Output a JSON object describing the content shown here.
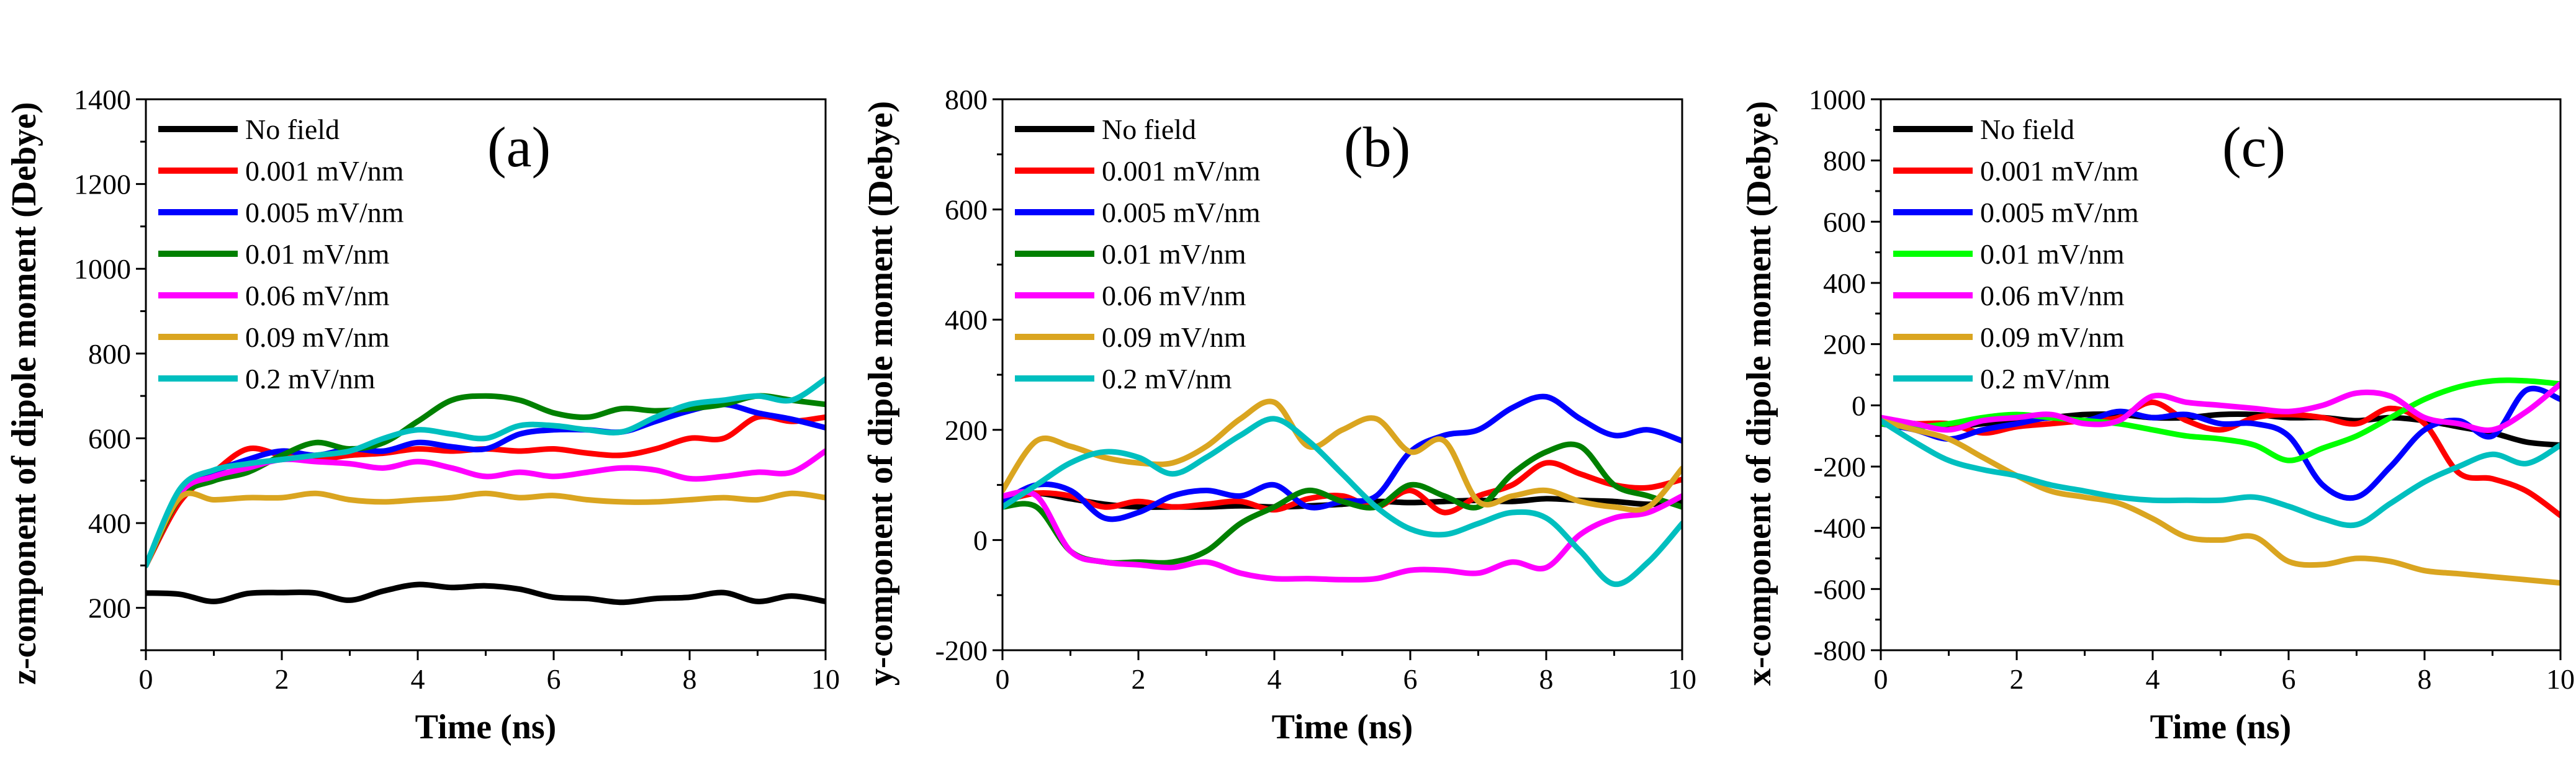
{
  "chart_data": [
    {
      "type": "line",
      "panel_label": "(a)",
      "xlabel": "Time (ns)",
      "ylabel": "z-component of dipole moment (Debye)",
      "xlim": [
        0,
        10
      ],
      "ylim": [
        100,
        1400
      ],
      "xticks": [
        0,
        2,
        4,
        6,
        8,
        10
      ],
      "yticks": [
        200,
        400,
        600,
        800,
        1000,
        1200,
        1400
      ],
      "legend_position": "top-left",
      "series": [
        {
          "name": "No field",
          "color": "#000000",
          "x": [
            0,
            0.5,
            1,
            1.5,
            2,
            2.5,
            3,
            3.5,
            4,
            4.5,
            5,
            5.5,
            6,
            6.5,
            7,
            7.5,
            8,
            8.5,
            9,
            9.5,
            10
          ],
          "y": [
            235,
            232,
            215,
            234,
            236,
            235,
            218,
            240,
            255,
            248,
            252,
            244,
            225,
            222,
            213,
            222,
            225,
            236,
            215,
            228,
            215
          ]
        },
        {
          "name": "0.001 mV/nm",
          "color": "#ff0000",
          "x": [
            0,
            0.5,
            1,
            1.5,
            2,
            2.5,
            3,
            3.5,
            4,
            4.5,
            5,
            5.5,
            6,
            6.5,
            7,
            7.5,
            8,
            8.5,
            9,
            9.5,
            10
          ],
          "y": [
            300,
            450,
            520,
            575,
            560,
            550,
            560,
            565,
            575,
            570,
            575,
            570,
            575,
            565,
            560,
            575,
            600,
            600,
            650,
            640,
            650
          ]
        },
        {
          "name": "0.005 mV/nm",
          "color": "#0000ff",
          "x": [
            0,
            0.5,
            1,
            1.5,
            2,
            2.5,
            3,
            3.5,
            4,
            4.5,
            5,
            5.5,
            6,
            6.5,
            7,
            7.5,
            8,
            8.5,
            9,
            9.5,
            10
          ],
          "y": [
            300,
            470,
            520,
            550,
            570,
            560,
            575,
            570,
            590,
            580,
            575,
            610,
            620,
            620,
            615,
            640,
            665,
            680,
            660,
            645,
            625
          ]
        },
        {
          "name": "0.01 mV/nm",
          "color": "#008000",
          "x": [
            0,
            0.5,
            1,
            1.5,
            2,
            2.5,
            3,
            3.5,
            4,
            4.5,
            5,
            5.5,
            6,
            6.5,
            7,
            7.5,
            8,
            8.5,
            9,
            9.5,
            10
          ],
          "y": [
            300,
            460,
            500,
            520,
            560,
            590,
            575,
            590,
            640,
            690,
            700,
            690,
            660,
            650,
            670,
            665,
            670,
            680,
            700,
            690,
            680
          ]
        },
        {
          "name": "0.06 mV/nm",
          "color": "#ff00ff",
          "x": [
            0,
            0.5,
            1,
            1.5,
            2,
            2.5,
            3,
            3.5,
            4,
            4.5,
            5,
            5.5,
            6,
            6.5,
            7,
            7.5,
            8,
            8.5,
            9,
            9.5,
            10
          ],
          "y": [
            300,
            470,
            510,
            530,
            550,
            545,
            540,
            530,
            545,
            530,
            510,
            520,
            510,
            520,
            530,
            525,
            505,
            510,
            520,
            520,
            570
          ]
        },
        {
          "name": "0.09 mV/nm",
          "color": "#daa520",
          "x": [
            0,
            0.5,
            1,
            1.5,
            2,
            2.5,
            3,
            3.5,
            4,
            4.5,
            5,
            5.5,
            6,
            6.5,
            7,
            7.5,
            8,
            8.5,
            9,
            9.5,
            10
          ],
          "y": [
            300,
            460,
            455,
            460,
            460,
            470,
            455,
            450,
            455,
            460,
            470,
            460,
            465,
            455,
            450,
            450,
            455,
            460,
            455,
            470,
            460
          ]
        },
        {
          "name": "0.2 mV/nm",
          "color": "#00bfbf",
          "x": [
            0,
            0.5,
            1,
            1.5,
            2,
            2.5,
            3,
            3.5,
            4,
            4.5,
            5,
            5.5,
            6,
            6.5,
            7,
            7.5,
            8,
            8.5,
            9,
            9.5,
            10
          ],
          "y": [
            300,
            480,
            525,
            540,
            550,
            560,
            570,
            600,
            620,
            610,
            600,
            630,
            630,
            620,
            615,
            650,
            680,
            690,
            700,
            690,
            740
          ]
        }
      ]
    },
    {
      "type": "line",
      "panel_label": "(b)",
      "xlabel": "Time (ns)",
      "ylabel": "y-component of dipole moment (Debye)",
      "xlim": [
        0,
        10
      ],
      "ylim": [
        -200,
        800
      ],
      "xticks": [
        0,
        2,
        4,
        6,
        8,
        10
      ],
      "yticks": [
        -200,
        0,
        200,
        400,
        600,
        800
      ],
      "legend_position": "top-left",
      "series": [
        {
          "name": "No field",
          "color": "#000000",
          "x": [
            0,
            0.5,
            1,
            1.5,
            2,
            2.5,
            3,
            3.5,
            4,
            4.5,
            5,
            5.5,
            6,
            6.5,
            7,
            7.5,
            8,
            8.5,
            9,
            9.5,
            10
          ],
          "y": [
            80,
            85,
            75,
            65,
            60,
            60,
            60,
            62,
            60,
            62,
            65,
            70,
            68,
            70,
            72,
            70,
            75,
            72,
            70,
            65,
            70
          ]
        },
        {
          "name": "0.001 mV/nm",
          "color": "#ff0000",
          "x": [
            0,
            0.5,
            1,
            1.5,
            2,
            2.5,
            3,
            3.5,
            4,
            4.5,
            5,
            5.5,
            6,
            6.5,
            7,
            7.5,
            8,
            8.5,
            9,
            9.5,
            10
          ],
          "y": [
            70,
            85,
            80,
            60,
            70,
            60,
            65,
            70,
            55,
            75,
            80,
            60,
            90,
            50,
            80,
            100,
            140,
            120,
            100,
            95,
            110
          ]
        },
        {
          "name": "0.005 mV/nm",
          "color": "#0000ff",
          "x": [
            0,
            0.5,
            1,
            1.5,
            2,
            2.5,
            3,
            3.5,
            4,
            4.5,
            5,
            5.5,
            6,
            6.5,
            7,
            7.5,
            8,
            8.5,
            9,
            9.5,
            10
          ],
          "y": [
            70,
            100,
            90,
            40,
            50,
            80,
            90,
            80,
            100,
            60,
            70,
            80,
            160,
            190,
            200,
            240,
            260,
            220,
            190,
            200,
            180
          ]
        },
        {
          "name": "0.01 mV/nm",
          "color": "#008000",
          "x": [
            0,
            0.5,
            1,
            1.5,
            2,
            2.5,
            3,
            3.5,
            4,
            4.5,
            5,
            5.5,
            6,
            6.5,
            7,
            7.5,
            8,
            8.5,
            9,
            9.5,
            10
          ],
          "y": [
            60,
            60,
            -20,
            -40,
            -40,
            -40,
            -20,
            30,
            60,
            90,
            70,
            60,
            100,
            80,
            60,
            120,
            160,
            170,
            100,
            80,
            60
          ]
        },
        {
          "name": "0.06 mV/nm",
          "color": "#ff00ff",
          "x": [
            0,
            0.5,
            1,
            1.5,
            2,
            2.5,
            3,
            3.5,
            4,
            4.5,
            5,
            5.5,
            6,
            6.5,
            7,
            7.5,
            8,
            8.5,
            9,
            9.5,
            10
          ],
          "y": [
            80,
            80,
            -20,
            -40,
            -45,
            -50,
            -40,
            -60,
            -70,
            -70,
            -72,
            -70,
            -55,
            -55,
            -60,
            -40,
            -50,
            10,
            40,
            50,
            80
          ]
        },
        {
          "name": "0.09 mV/nm",
          "color": "#daa520",
          "x": [
            0,
            0.5,
            1,
            1.5,
            2,
            2.5,
            3,
            3.5,
            4,
            4.5,
            5,
            5.5,
            6,
            6.5,
            7,
            7.5,
            8,
            8.5,
            9,
            9.5,
            10
          ],
          "y": [
            90,
            180,
            170,
            150,
            140,
            140,
            170,
            220,
            250,
            170,
            200,
            220,
            160,
            180,
            70,
            80,
            90,
            70,
            60,
            60,
            130
          ]
        },
        {
          "name": "0.2 mV/nm",
          "color": "#00bfbf",
          "x": [
            0,
            0.5,
            1,
            1.5,
            2,
            2.5,
            3,
            3.5,
            4,
            4.5,
            5,
            5.5,
            6,
            6.5,
            7,
            7.5,
            8,
            8.5,
            9,
            9.5,
            10
          ],
          "y": [
            60,
            100,
            140,
            160,
            150,
            120,
            150,
            190,
            220,
            180,
            120,
            60,
            20,
            10,
            30,
            50,
            40,
            -20,
            -80,
            -40,
            30
          ]
        }
      ]
    },
    {
      "type": "line",
      "panel_label": "(c)",
      "xlabel": "Time (ns)",
      "ylabel": "x-component of dipole moment (Debye)",
      "xlim": [
        0,
        10
      ],
      "ylim": [
        -800,
        1000
      ],
      "xticks": [
        0,
        2,
        4,
        6,
        8,
        10
      ],
      "yticks": [
        -800,
        -600,
        -400,
        -200,
        0,
        200,
        400,
        600,
        800,
        1000
      ],
      "legend_position": "top-left",
      "series": [
        {
          "name": "No field",
          "color": "#000000",
          "x": [
            0,
            0.5,
            1,
            1.5,
            2,
            2.5,
            3,
            3.5,
            4,
            4.5,
            5,
            5.5,
            6,
            6.5,
            7,
            7.5,
            8,
            8.5,
            9,
            9.5,
            10
          ],
          "y": [
            -50,
            -60,
            -70,
            -60,
            -50,
            -40,
            -30,
            -30,
            -40,
            -40,
            -30,
            -30,
            -40,
            -40,
            -50,
            -40,
            -50,
            -70,
            -90,
            -120,
            -130
          ]
        },
        {
          "name": "0.001 mV/nm",
          "color": "#ff0000",
          "x": [
            0,
            0.5,
            1,
            1.5,
            2,
            2.5,
            3,
            3.5,
            4,
            4.5,
            5,
            5.5,
            6,
            6.5,
            7,
            7.5,
            8,
            8.5,
            9,
            9.5,
            10
          ],
          "y": [
            -50,
            -60,
            -60,
            -90,
            -70,
            -60,
            -50,
            -40,
            10,
            -50,
            -80,
            -40,
            -30,
            -40,
            -60,
            -10,
            -60,
            -220,
            -240,
            -280,
            -360
          ]
        },
        {
          "name": "0.005 mV/nm",
          "color": "#0000ff",
          "x": [
            0,
            0.5,
            1,
            1.5,
            2,
            2.5,
            3,
            3.5,
            4,
            4.5,
            5,
            5.5,
            6,
            6.5,
            7,
            7.5,
            8,
            8.5,
            9,
            9.5,
            10
          ],
          "y": [
            -60,
            -80,
            -110,
            -80,
            -60,
            -40,
            -50,
            -20,
            -40,
            -30,
            -60,
            -60,
            -100,
            -260,
            -300,
            -200,
            -80,
            -50,
            -100,
            50,
            20
          ]
        },
        {
          "name": "0.01 mV/nm",
          "color": "#00ff00",
          "x": [
            0,
            0.5,
            1,
            1.5,
            2,
            2.5,
            3,
            3.5,
            4,
            4.5,
            5,
            5.5,
            6,
            6.5,
            7,
            7.5,
            8,
            8.5,
            9,
            9.5,
            10
          ],
          "y": [
            -60,
            -70,
            -60,
            -40,
            -30,
            -40,
            -50,
            -60,
            -80,
            -100,
            -110,
            -130,
            -180,
            -140,
            -100,
            -40,
            20,
            60,
            80,
            80,
            70
          ]
        },
        {
          "name": "0.06 mV/nm",
          "color": "#ff00ff",
          "x": [
            0,
            0.5,
            1,
            1.5,
            2,
            2.5,
            3,
            3.5,
            4,
            4.5,
            5,
            5.5,
            6,
            6.5,
            7,
            7.5,
            8,
            8.5,
            9,
            9.5,
            10
          ],
          "y": [
            -40,
            -60,
            -80,
            -50,
            -40,
            -30,
            -60,
            -50,
            30,
            10,
            0,
            -10,
            -20,
            0,
            40,
            30,
            -40,
            -60,
            -80,
            -20,
            70
          ]
        },
        {
          "name": "0.09 mV/nm",
          "color": "#daa520",
          "x": [
            0,
            0.5,
            1,
            1.5,
            2,
            2.5,
            3,
            3.5,
            4,
            4.5,
            5,
            5.5,
            6,
            6.5,
            7,
            7.5,
            8,
            8.5,
            9,
            9.5,
            10
          ],
          "y": [
            -50,
            -80,
            -110,
            -170,
            -230,
            -280,
            -300,
            -320,
            -370,
            -430,
            -440,
            -430,
            -510,
            -520,
            -500,
            -510,
            -540,
            -550,
            -560,
            -570,
            -580
          ]
        },
        {
          "name": "0.2 mV/nm",
          "color": "#00bfbf",
          "x": [
            0,
            0.5,
            1,
            1.5,
            2,
            2.5,
            3,
            3.5,
            4,
            4.5,
            5,
            5.5,
            6,
            6.5,
            7,
            7.5,
            8,
            8.5,
            9,
            9.5,
            10
          ],
          "y": [
            -50,
            -120,
            -180,
            -210,
            -230,
            -260,
            -280,
            -300,
            -310,
            -310,
            -310,
            -300,
            -330,
            -370,
            -390,
            -320,
            -250,
            -200,
            -160,
            -190,
            -130
          ]
        }
      ]
    }
  ]
}
